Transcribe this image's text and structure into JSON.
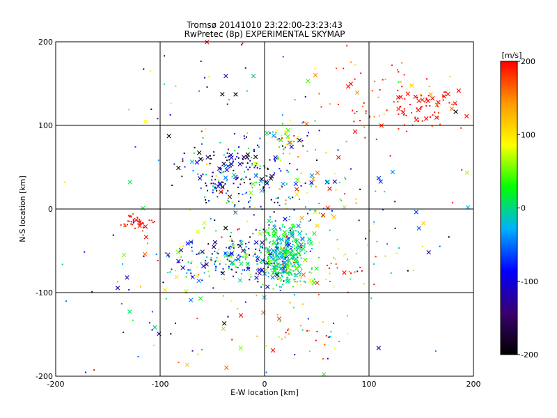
{
  "chart_data": {
    "type": "scatter",
    "title": "Tromsø 20141010 23:22:00-23:23:43",
    "subtitle": "RwPretec (8p) EXPERIMENTAL SKYMAP",
    "xlabel": "E-W location [km]",
    "ylabel": "N-S location [km]",
    "xlim": [
      -200,
      200
    ],
    "ylim": [
      -200,
      200
    ],
    "x_ticks": [
      -200,
      -100,
      0,
      100,
      200
    ],
    "y_ticks": [
      -200,
      -100,
      0,
      100,
      200
    ],
    "x_tick_labels": [
      "-200",
      "-100",
      "0",
      "100",
      "200"
    ],
    "y_tick_labels": [
      "-200",
      "-100",
      "0",
      "100",
      "200"
    ],
    "grid": true,
    "marker_types": [
      "dot",
      "x"
    ],
    "colorbar": {
      "label": "[m/s]",
      "range": [
        -200,
        200
      ],
      "ticks": [
        200,
        100,
        0,
        -100,
        -200
      ],
      "tick_labels": [
        "200",
        "100",
        "0",
        "-100",
        "-200"
      ],
      "colors": [
        "#000000",
        "#3a0070",
        "#0000ff",
        "#00b0ff",
        "#00ff00",
        "#ffff00",
        "#ff9900",
        "#ff0000"
      ]
    },
    "clusters": [
      {
        "cx": 20,
        "cy": -55,
        "sx": 12,
        "sy": 20,
        "n": 380,
        "v": 0,
        "vs": 30
      },
      {
        "cx": 20,
        "cy": 85,
        "sx": 10,
        "sy": 10,
        "n": 45,
        "v": 20,
        "vs": 90
      },
      {
        "cx": -30,
        "cy": -60,
        "sx": 30,
        "sy": 14,
        "n": 220,
        "v": -50,
        "vs": 80
      },
      {
        "cx": -30,
        "cy": 45,
        "sx": 25,
        "sy": 18,
        "n": 160,
        "v": -100,
        "vs": 80
      },
      {
        "cx": 150,
        "cy": 120,
        "sx": 20,
        "sy": 15,
        "n": 70,
        "v": 200,
        "vs": 15
      },
      {
        "cx": 100,
        "cy": 130,
        "sx": 35,
        "sy": 25,
        "n": 60,
        "v": 180,
        "vs": 35
      },
      {
        "cx": -120,
        "cy": -15,
        "sx": 8,
        "sy": 6,
        "n": 40,
        "v": 200,
        "vs": 15
      },
      {
        "cx": 55,
        "cy": -70,
        "sx": 30,
        "sy": 15,
        "n": 70,
        "v": 100,
        "vs": 90
      },
      {
        "cx": 40,
        "cy": 30,
        "sx": 30,
        "sy": 25,
        "n": 60,
        "v": 0,
        "vs": 100
      },
      {
        "cx": -10,
        "cy": 10,
        "sx": 25,
        "sy": 20,
        "n": 60,
        "v": -50,
        "vs": 100
      },
      {
        "cx": 40,
        "cy": -150,
        "sx": 40,
        "sy": 25,
        "n": 40,
        "v": 100,
        "vs": 120
      },
      {
        "cx": -60,
        "cy": -150,
        "sx": 50,
        "sy": 30,
        "n": 25,
        "v": 0,
        "vs": 150
      },
      {
        "cx": -100,
        "cy": -80,
        "sx": 30,
        "sy": 30,
        "n": 30,
        "v": 50,
        "vs": 150
      },
      {
        "cx": 80,
        "cy": 0,
        "sx": 50,
        "sy": 40,
        "n": 50,
        "v": -50,
        "vs": 150
      },
      {
        "cx": -60,
        "cy": 150,
        "sx": 40,
        "sy": 30,
        "n": 20,
        "v": -100,
        "vs": 120
      },
      {
        "cx": 0,
        "cy": 0,
        "sx": 120,
        "sy": 110,
        "n": 90,
        "v": 0,
        "vs": 150
      }
    ]
  }
}
